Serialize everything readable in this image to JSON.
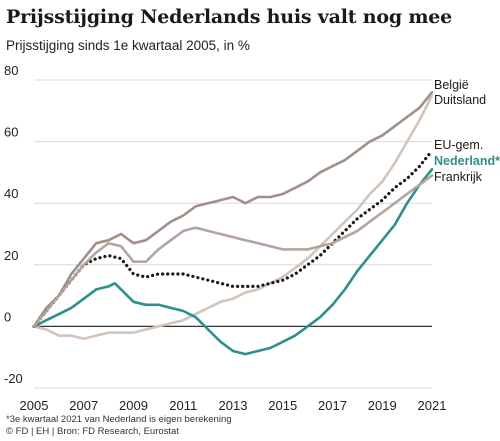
{
  "chart_data": {
    "type": "line",
    "title": "Prijsstijging Nederlands huis valt nog mee",
    "subtitle": "Prijsstijging sinds 1e kwartaal 2005, in %",
    "xlabel": "",
    "ylabel": "",
    "xlim": [
      2005,
      2021
    ],
    "ylim": [
      -20,
      80
    ],
    "x_ticks": [
      "2005",
      "2007",
      "2009",
      "2011",
      "2013",
      "2015",
      "2017",
      "2019",
      "2021"
    ],
    "y_ticks": [
      "-20",
      "0",
      "20",
      "40",
      "60",
      "80"
    ],
    "grid": "horizontal",
    "series": [
      {
        "name": "België",
        "color": "#a19088",
        "style": "solid",
        "points": [
          [
            2005,
            0
          ],
          [
            2005.5,
            6
          ],
          [
            2006,
            10
          ],
          [
            2006.5,
            17
          ],
          [
            2007,
            22
          ],
          [
            2007.5,
            27
          ],
          [
            2008,
            28
          ],
          [
            2008.5,
            30
          ],
          [
            2009,
            27
          ],
          [
            2009.5,
            28
          ],
          [
            2010,
            31
          ],
          [
            2010.5,
            34
          ],
          [
            2011,
            36
          ],
          [
            2011.5,
            39
          ],
          [
            2012,
            40
          ],
          [
            2012.5,
            41
          ],
          [
            2013,
            42
          ],
          [
            2013.5,
            40
          ],
          [
            2014,
            42
          ],
          [
            2014.5,
            42
          ],
          [
            2015,
            43
          ],
          [
            2015.5,
            45
          ],
          [
            2016,
            47
          ],
          [
            2016.5,
            50
          ],
          [
            2017,
            52
          ],
          [
            2017.5,
            54
          ],
          [
            2018,
            57
          ],
          [
            2018.5,
            60
          ],
          [
            2019,
            62
          ],
          [
            2019.5,
            65
          ],
          [
            2020,
            68
          ],
          [
            2020.5,
            71
          ],
          [
            2021,
            76
          ]
        ]
      },
      {
        "name": "Duitsland",
        "color": "#d3c3b9",
        "style": "solid",
        "points": [
          [
            2005,
            0
          ],
          [
            2005.5,
            -1
          ],
          [
            2006,
            -3
          ],
          [
            2006.5,
            -3
          ],
          [
            2007,
            -4
          ],
          [
            2007.5,
            -3
          ],
          [
            2008,
            -2
          ],
          [
            2008.5,
            -2
          ],
          [
            2009,
            -2
          ],
          [
            2009.5,
            -1
          ],
          [
            2010,
            0
          ],
          [
            2010.5,
            1
          ],
          [
            2011,
            2
          ],
          [
            2011.5,
            4
          ],
          [
            2012,
            6
          ],
          [
            2012.5,
            8
          ],
          [
            2013,
            9
          ],
          [
            2013.5,
            11
          ],
          [
            2014,
            12
          ],
          [
            2014.5,
            14
          ],
          [
            2015,
            16
          ],
          [
            2015.5,
            19
          ],
          [
            2016,
            22
          ],
          [
            2016.5,
            26
          ],
          [
            2017,
            30
          ],
          [
            2017.5,
            34
          ],
          [
            2018,
            38
          ],
          [
            2018.5,
            43
          ],
          [
            2019,
            47
          ],
          [
            2019.5,
            53
          ],
          [
            2020,
            60
          ],
          [
            2020.5,
            67
          ],
          [
            2021,
            75
          ]
        ]
      },
      {
        "name": "EU-gem.",
        "color": "#1a1a1a",
        "style": "dotted",
        "points": [
          [
            2005,
            0
          ],
          [
            2005.5,
            5
          ],
          [
            2006,
            10
          ],
          [
            2006.5,
            15
          ],
          [
            2007,
            20
          ],
          [
            2007.5,
            22
          ],
          [
            2008,
            23
          ],
          [
            2008.5,
            22
          ],
          [
            2009,
            17
          ],
          [
            2009.5,
            16
          ],
          [
            2010,
            17
          ],
          [
            2010.5,
            17
          ],
          [
            2011,
            17
          ],
          [
            2011.5,
            16
          ],
          [
            2012,
            15
          ],
          [
            2012.5,
            14
          ],
          [
            2013,
            13
          ],
          [
            2013.5,
            13
          ],
          [
            2014,
            13
          ],
          [
            2014.5,
            14
          ],
          [
            2015,
            15
          ],
          [
            2015.5,
            17
          ],
          [
            2016,
            20
          ],
          [
            2016.5,
            23
          ],
          [
            2017,
            27
          ],
          [
            2017.5,
            31
          ],
          [
            2018,
            35
          ],
          [
            2018.5,
            38
          ],
          [
            2019,
            41
          ],
          [
            2019.5,
            45
          ],
          [
            2020,
            48
          ],
          [
            2020.5,
            52
          ],
          [
            2021,
            57
          ]
        ]
      },
      {
        "name": "Nederland*",
        "color": "#2f8f8a",
        "style": "solid",
        "points": [
          [
            2005,
            0
          ],
          [
            2005.5,
            2
          ],
          [
            2006,
            4
          ],
          [
            2006.5,
            6
          ],
          [
            2007,
            9
          ],
          [
            2007.5,
            12
          ],
          [
            2008,
            13
          ],
          [
            2008.25,
            14
          ],
          [
            2008.5,
            12
          ],
          [
            2009,
            8
          ],
          [
            2009.5,
            7
          ],
          [
            2010,
            7
          ],
          [
            2010.5,
            6
          ],
          [
            2011,
            5
          ],
          [
            2011.5,
            3
          ],
          [
            2012,
            -1
          ],
          [
            2012.5,
            -5
          ],
          [
            2013,
            -8
          ],
          [
            2013.5,
            -9
          ],
          [
            2014,
            -8
          ],
          [
            2014.5,
            -7
          ],
          [
            2015,
            -5
          ],
          [
            2015.5,
            -3
          ],
          [
            2016,
            0
          ],
          [
            2016.5,
            3
          ],
          [
            2017,
            7
          ],
          [
            2017.5,
            12
          ],
          [
            2018,
            18
          ],
          [
            2018.5,
            23
          ],
          [
            2019,
            28
          ],
          [
            2019.5,
            33
          ],
          [
            2020,
            40
          ],
          [
            2020.5,
            46
          ],
          [
            2021,
            51
          ]
        ]
      },
      {
        "name": "Frankrijk",
        "color": "#b3a59d",
        "style": "solid",
        "points": [
          [
            2005,
            0
          ],
          [
            2005.5,
            5
          ],
          [
            2006,
            10
          ],
          [
            2006.5,
            15
          ],
          [
            2007,
            20
          ],
          [
            2007.5,
            24
          ],
          [
            2008,
            27
          ],
          [
            2008.5,
            26
          ],
          [
            2009,
            21
          ],
          [
            2009.5,
            21
          ],
          [
            2010,
            25
          ],
          [
            2010.5,
            28
          ],
          [
            2011,
            31
          ],
          [
            2011.5,
            32
          ],
          [
            2012,
            31
          ],
          [
            2012.5,
            30
          ],
          [
            2013,
            29
          ],
          [
            2013.5,
            28
          ],
          [
            2014,
            27
          ],
          [
            2014.5,
            26
          ],
          [
            2015,
            25
          ],
          [
            2015.5,
            25
          ],
          [
            2016,
            25
          ],
          [
            2016.5,
            26
          ],
          [
            2017,
            27
          ],
          [
            2017.5,
            29
          ],
          [
            2018,
            31
          ],
          [
            2018.5,
            34
          ],
          [
            2019,
            37
          ],
          [
            2019.5,
            40
          ],
          [
            2020,
            43
          ],
          [
            2020.5,
            46
          ],
          [
            2021,
            49
          ]
        ]
      }
    ],
    "legend_labels": [
      {
        "text": "België",
        "color": "#1a1a1a",
        "bold": false
      },
      {
        "text": "Duitsland",
        "color": "#1a1a1a",
        "bold": false
      },
      {
        "text": "EU-gem.",
        "color": "#1a1a1a",
        "bold": false
      },
      {
        "text": "Nederland*",
        "color": "#2f8f8a",
        "bold": true
      },
      {
        "text": "Frankrijk",
        "color": "#1a1a1a",
        "bold": false
      }
    ],
    "legend_position": "right",
    "colors": {
      "grid": "#d9d9d9",
      "zero_line": "#333333",
      "axis_text": "#222222"
    }
  },
  "footnote": {
    "line1": "*3e kwartaal 2021 van Nederland is eigen berekening",
    "line2": "© FD | EH | Bron: FD Research, Eurostat"
  }
}
